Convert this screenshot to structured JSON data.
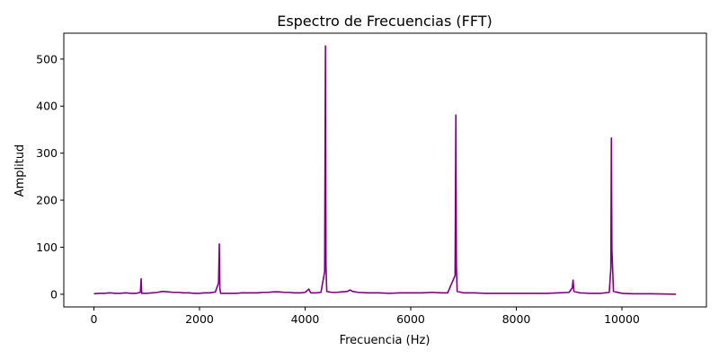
{
  "chart_data": {
    "type": "line",
    "title": "Espectro de Frecuencias (FFT)",
    "xlabel": "Frecuencia (Hz)",
    "ylabel": "Amplitud",
    "xlim": [
      -570,
      11600
    ],
    "ylim": [
      -27,
      555
    ],
    "x_ticks": [
      0,
      2000,
      4000,
      6000,
      8000,
      10000
    ],
    "y_ticks": [
      0,
      100,
      200,
      300,
      400,
      500
    ],
    "grid": false,
    "legend": "none",
    "line_color": "#800080",
    "series": [
      {
        "x": [
          0,
          100,
          200,
          300,
          400,
          500,
          600,
          700,
          800,
          880,
          895,
          905,
          920,
          1000,
          1100,
          1200,
          1300,
          1400,
          1500,
          1600,
          1700,
          1800,
          1900,
          2000,
          2100,
          2200,
          2300,
          2360,
          2375,
          2385,
          2400,
          2500,
          2600,
          2700,
          2800,
          2900,
          3000,
          3100,
          3200,
          3300,
          3400,
          3500,
          3600,
          3700,
          3800,
          3900,
          4000,
          4070,
          4090,
          4110,
          4200,
          4300,
          4370,
          4385,
          4395,
          4410,
          4500,
          4600,
          4700,
          4800,
          4850,
          4900,
          5000,
          5200,
          5400,
          5600,
          5800,
          6000,
          6200,
          6400,
          6600,
          6700,
          6840,
          6855,
          6865,
          6880,
          7000,
          7200,
          7400,
          7600,
          7800,
          8000,
          8200,
          8400,
          8600,
          8800,
          9000,
          9060,
          9075,
          9090,
          9200,
          9400,
          9600,
          9760,
          9790,
          9800,
          9810,
          9840,
          10000,
          10200,
          10400,
          10550,
          11025
        ],
        "values": [
          1,
          2,
          2,
          3,
          2,
          2,
          3,
          2,
          2,
          4,
          33,
          2,
          2,
          2,
          3,
          4,
          6,
          5,
          4,
          4,
          3,
          3,
          2,
          2,
          3,
          3,
          5,
          24,
          107,
          12,
          2,
          2,
          2,
          2,
          3,
          3,
          3,
          3,
          4,
          4,
          5,
          5,
          4,
          4,
          3,
          3,
          4,
          11,
          6,
          3,
          3,
          4,
          48,
          528,
          62,
          6,
          4,
          4,
          5,
          6,
          9,
          6,
          4,
          3,
          3,
          2,
          3,
          3,
          3,
          4,
          3,
          3,
          40,
          381,
          58,
          6,
          3,
          3,
          2,
          2,
          2,
          2,
          2,
          2,
          2,
          3,
          4,
          14,
          30,
          6,
          3,
          2,
          2,
          4,
          55,
          332,
          95,
          6,
          2,
          1,
          1,
          1,
          0
        ]
      }
    ]
  }
}
